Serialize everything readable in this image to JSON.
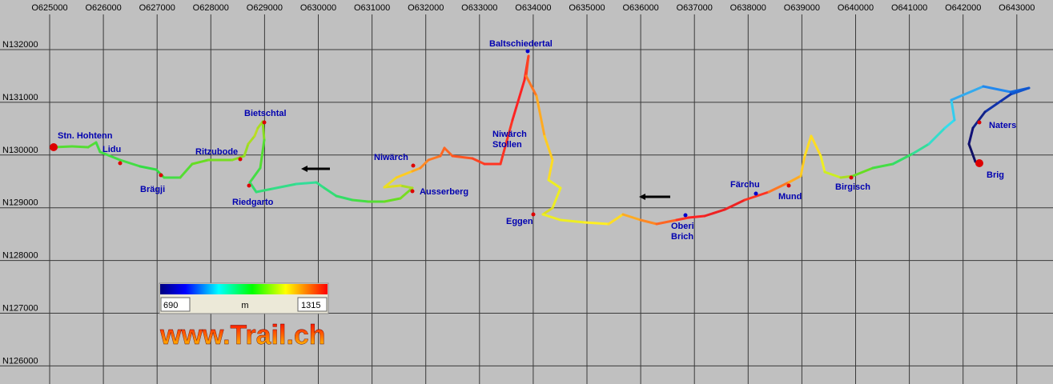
{
  "map": {
    "x_labels": [
      "O625000",
      "O626000",
      "O627000",
      "O628000",
      "O629000",
      "O630000",
      "O631000",
      "O632000",
      "O633000",
      "O634000",
      "O635000",
      "O636000",
      "O637000",
      "O638000",
      "O639000",
      "O640000",
      "O641000",
      "O642000",
      "O643000"
    ],
    "y_labels": [
      "N132000",
      "N131000",
      "N130000",
      "N129000",
      "N128000",
      "N127000",
      "N126000"
    ],
    "places": [
      {
        "lines": [
          "Stn. Hohtenn"
        ]
      },
      {
        "lines": [
          "Lidu"
        ]
      },
      {
        "lines": [
          "Brägji"
        ]
      },
      {
        "lines": [
          "Ritzubode"
        ]
      },
      {
        "lines": [
          "Bietschtal"
        ]
      },
      {
        "lines": [
          "Riedgarto"
        ]
      },
      {
        "lines": [
          "Niwärch"
        ]
      },
      {
        "lines": [
          "Ausserberg"
        ]
      },
      {
        "lines": [
          "Niwärch",
          "Stollen"
        ]
      },
      {
        "lines": [
          "Baltschiedertal"
        ]
      },
      {
        "lines": [
          "Eggen"
        ]
      },
      {
        "lines": [
          "Oberi",
          "Brich"
        ]
      },
      {
        "lines": [
          "Färchu"
        ]
      },
      {
        "lines": [
          "Mund"
        ]
      },
      {
        "lines": [
          "Birgisch"
        ]
      },
      {
        "lines": [
          "Naters"
        ]
      },
      {
        "lines": [
          "Brig"
        ]
      }
    ],
    "legend": {
      "min": 690,
      "unit": "m",
      "max": 1315
    },
    "watermark": "www.Trail.ch"
  }
}
